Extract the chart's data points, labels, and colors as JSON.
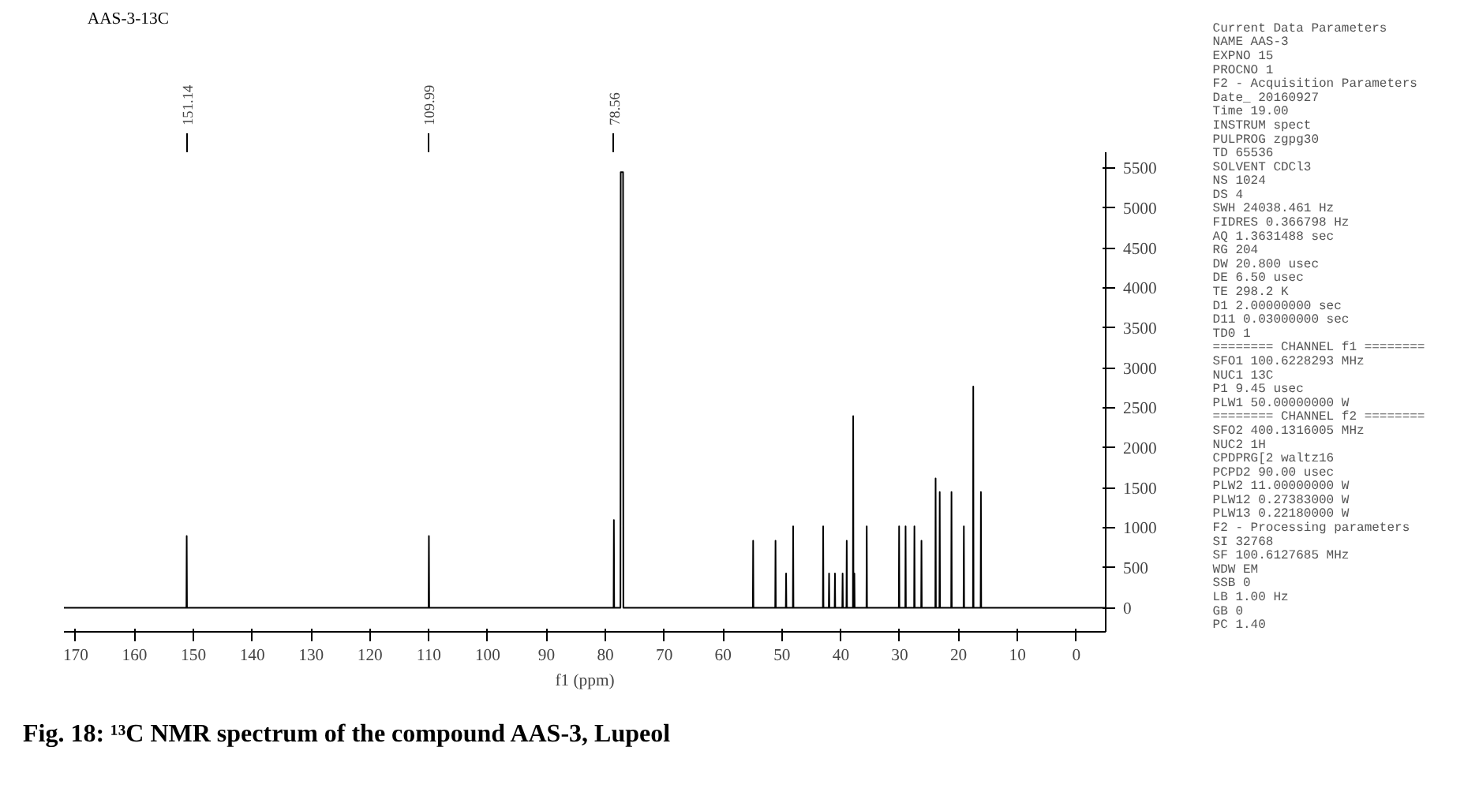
{
  "chart_data": {
    "type": "line",
    "title": "AAS-3-13C",
    "xlabel": "f1 (ppm)",
    "xlim": [
      172,
      -5
    ],
    "xticks": [
      170,
      160,
      150,
      140,
      130,
      120,
      110,
      100,
      90,
      80,
      70,
      60,
      50,
      40,
      30,
      20,
      10,
      0
    ],
    "ylim": [
      -300,
      5700
    ],
    "yticks": [
      0,
      500,
      1000,
      1500,
      2000,
      2500,
      3000,
      3500,
      4000,
      4500,
      5000,
      5500
    ],
    "x2lim": [
      172,
      -5
    ],
    "x2ticks": [
      151.14,
      109.99,
      78.56
    ],
    "grid": false,
    "marker": "none",
    "line_style": "solid",
    "series": [
      {
        "color": "#000000",
        "x": [
          172,
          151.19,
          151.14,
          151.09,
          110.04,
          109.99,
          109.94,
          78.61,
          78.56,
          78.51,
          77.45,
          77.4,
          77.2,
          77.0,
          76.95,
          54.95,
          54.9,
          54.85,
          51.15,
          51.1,
          51.05,
          49.35,
          49.3,
          49.25,
          48.15,
          48.1,
          48.05,
          43.05,
          43.0,
          42.95,
          42.05,
          42.0,
          41.95,
          41.05,
          41.0,
          40.95,
          39.75,
          39.7,
          39.65,
          39.05,
          39.0,
          38.95,
          37.95,
          37.9,
          37.85,
          37.75,
          37.7,
          37.65,
          35.65,
          35.6,
          35.55,
          30.15,
          30.1,
          30.05,
          29.05,
          29.0,
          28.95,
          27.55,
          27.5,
          27.45,
          26.35,
          26.3,
          26.25,
          23.95,
          23.9,
          23.85,
          23.25,
          23.2,
          23.15,
          21.25,
          21.2,
          21.15,
          19.15,
          19.1,
          19.05,
          17.55,
          17.5,
          17.45,
          16.25,
          16.2,
          16.15,
          -5
        ],
        "values": [
          0,
          0,
          900,
          0,
          0,
          900,
          0,
          0,
          1100,
          0,
          0,
          5450,
          5450,
          5450,
          0,
          0,
          840,
          0,
          0,
          840,
          0,
          0,
          430,
          0,
          0,
          1020,
          0,
          0,
          1020,
          0,
          0,
          430,
          0,
          0,
          430,
          0,
          0,
          430,
          0,
          0,
          840,
          0,
          0,
          2400,
          0,
          0,
          430,
          0,
          0,
          1020,
          0,
          0,
          1020,
          0,
          0,
          1020,
          0,
          0,
          1020,
          0,
          0,
          840,
          0,
          0,
          1620,
          0,
          0,
          1450,
          0,
          0,
          1450,
          0,
          0,
          1020,
          0,
          0,
          2770,
          0,
          0,
          1450,
          0,
          0
        ]
      }
    ],
    "annotations": [
      "Fig. 18: ¹³C NMR spectrum of the compound AAS-3, Lupeol",
      "Current Data Parameters",
      "NAME AAS-3",
      "EXPNO 15",
      "PROCNO 1",
      "F2 - Acquisition Parameters",
      "Date_ 20160927",
      "Time 19.00",
      "INSTRUM spect",
      "PULPROG zgpg30",
      "TD 65536",
      "SOLVENT CDCl3",
      "NS 1024",
      "DS 4",
      "SWH 24038.461 Hz",
      "FIDRES 0.366798 Hz",
      "AQ 1.3631488 sec",
      "RG 204",
      "DW 20.800 usec",
      "DE 6.50 usec",
      "TE 298.2 K",
      "D1 2.00000000 sec",
      "D11 0.03000000 sec",
      "TD0 1",
      "======== CHANNEL f1 ========",
      "SFO1 100.6228293 MHz",
      "NUC1 13C",
      "P1 9.45 usec",
      "PLW1 50.00000000 W",
      "======== CHANNEL f2 ========",
      "SFO2 400.1316005 MHz",
      "NUC2 1H",
      "CPDPRG[2 waltz16",
      "PCPD2 90.00 usec",
      "PLW2 11.00000000 W",
      "PLW12 0.27383000 W",
      "PLW13 0.22180000 W",
      "F2 - Processing parameters",
      "SI 32768",
      "SF 100.6127685 MHz",
      "WDW EM",
      "SSB 0",
      "LB 1.00 Hz",
      "GB 0",
      "PC 1.40"
    ]
  }
}
